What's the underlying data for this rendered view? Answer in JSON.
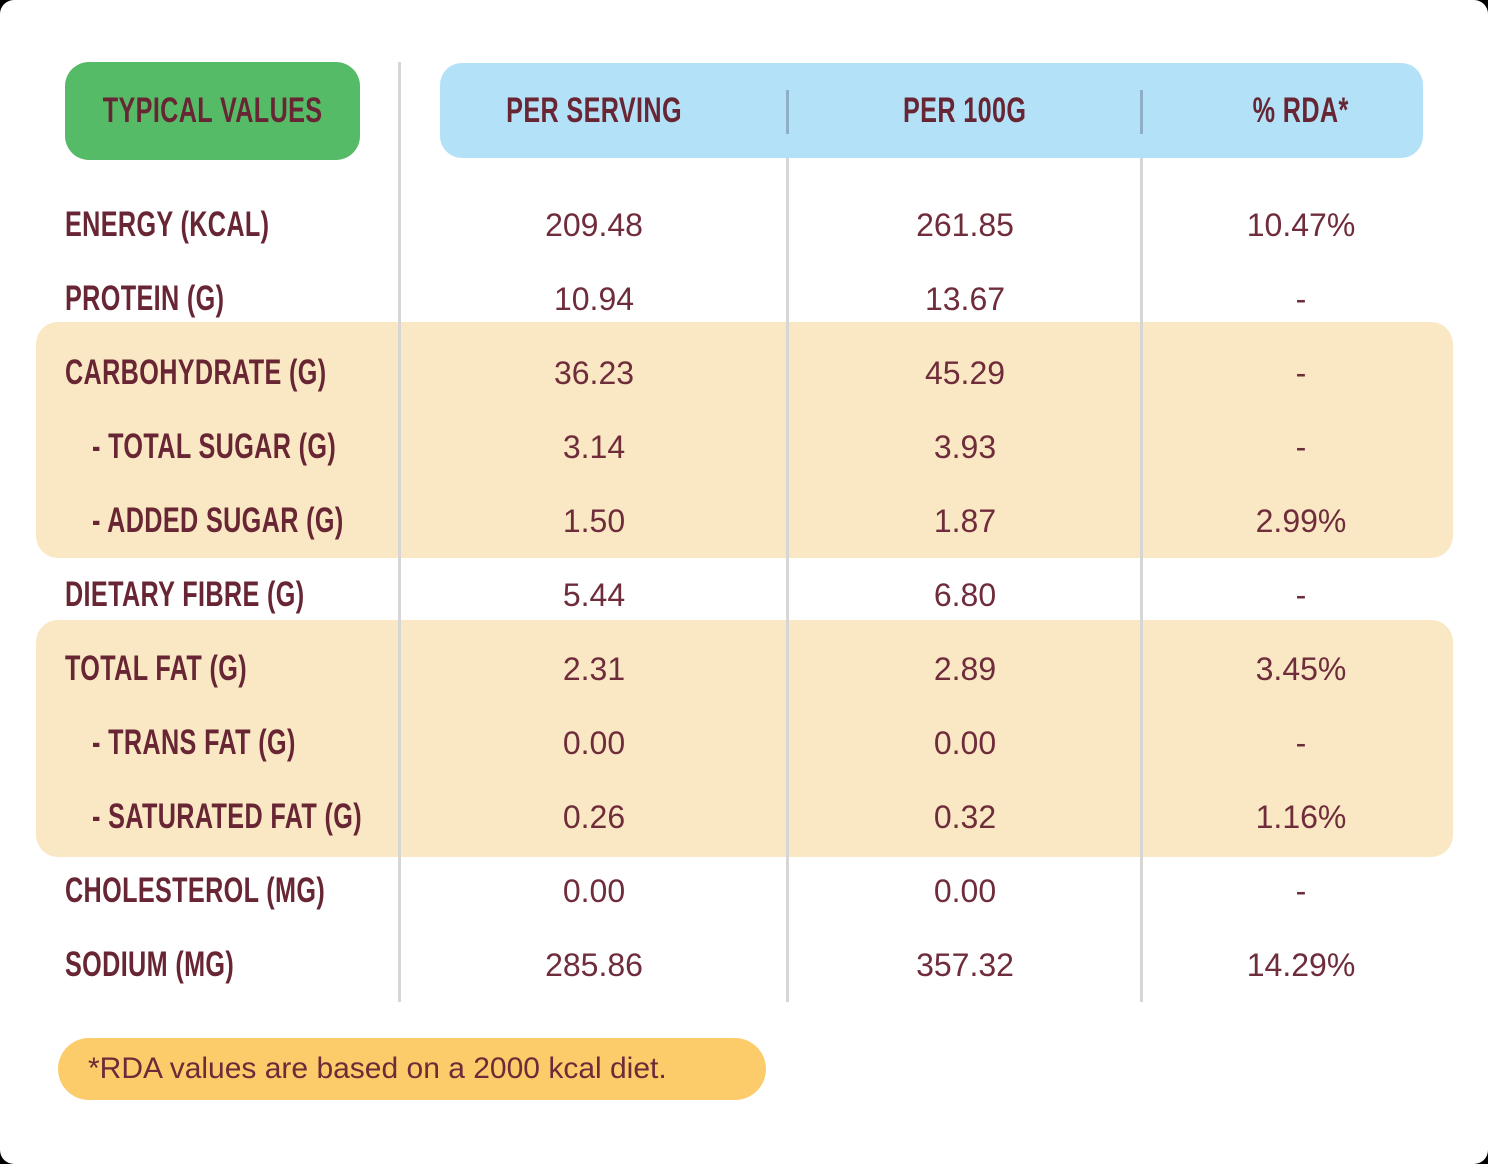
{
  "colors": {
    "badge_green": "#56BB67",
    "header_blue": "#B3E2F8",
    "highlight_cream": "#FAE8C4",
    "footnote_gold": "#FBCC69",
    "text_maroon_labels": "#682634",
    "text_maroon_values": "#6F2C3B",
    "divider_gray": "#D6D6D6",
    "divider_blue_gray": "#8FAFC7",
    "card_background": "#FFFFFF"
  },
  "table": {
    "corner_label": "TYPICAL VALUES",
    "column_headers": [
      "PER SERVING",
      "PER 100G",
      "% RDA*"
    ],
    "rows": [
      {
        "label": "ENERGY (KCAL)",
        "indent": false,
        "highlight": false,
        "per_serving": "209.48",
        "per_100g": "261.85",
        "rda": "10.47%"
      },
      {
        "label": "PROTEIN (G)",
        "indent": false,
        "highlight": false,
        "per_serving": "10.94",
        "per_100g": "13.67",
        "rda": "-"
      },
      {
        "label": "CARBOHYDRATE (G)",
        "indent": false,
        "highlight": true,
        "per_serving": "36.23",
        "per_100g": "45.29",
        "rda": "-"
      },
      {
        "label": "- TOTAL SUGAR (G)",
        "indent": true,
        "highlight": true,
        "per_serving": "3.14",
        "per_100g": "3.93",
        "rda": "-"
      },
      {
        "label": "- ADDED SUGAR (G)",
        "indent": true,
        "highlight": true,
        "per_serving": "1.50",
        "per_100g": "1.87",
        "rda": "2.99%"
      },
      {
        "label": "DIETARY FIBRE (G)",
        "indent": false,
        "highlight": false,
        "per_serving": "5.44",
        "per_100g": "6.80",
        "rda": "-"
      },
      {
        "label": "TOTAL FAT (G)",
        "indent": false,
        "highlight": true,
        "per_serving": "2.31",
        "per_100g": "2.89",
        "rda": "3.45%"
      },
      {
        "label": "- TRANS FAT (G)",
        "indent": true,
        "highlight": true,
        "per_serving": "0.00",
        "per_100g": "0.00",
        "rda": "-"
      },
      {
        "label": "- SATURATED FAT (G)",
        "indent": true,
        "highlight": true,
        "per_serving": "0.26",
        "per_100g": "0.32",
        "rda": "1.16%"
      },
      {
        "label": "CHOLESTEROL (MG)",
        "indent": false,
        "highlight": false,
        "per_serving": "0.00",
        "per_100g": "0.00",
        "rda": "-"
      },
      {
        "label": "SODIUM (MG)",
        "indent": false,
        "highlight": false,
        "per_serving": "285.86",
        "per_100g": "357.32",
        "rda": "14.29%"
      }
    ],
    "footnote": "*RDA values are based on a 2000 kcal diet."
  }
}
